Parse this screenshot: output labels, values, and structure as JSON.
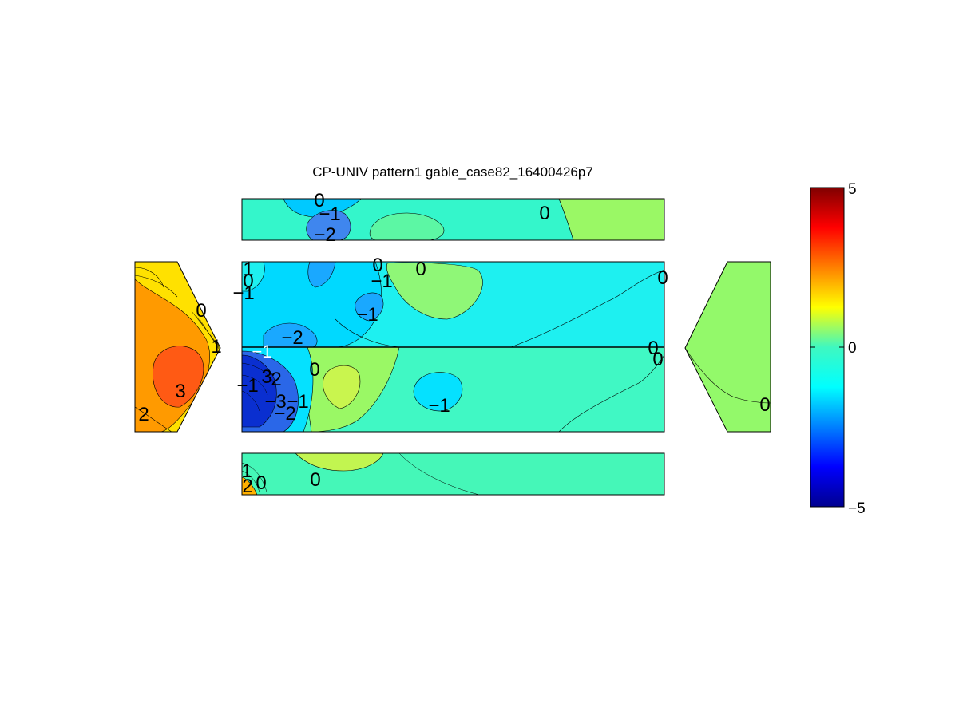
{
  "chart_data": {
    "type": "heatmap",
    "subtype": "filled contour (pressure coefficient on unfolded gable building surfaces)",
    "title": "CP-UNIV pattern1 gable_case82_16400426p7",
    "colormap": "jet",
    "clim": [
      -5,
      5
    ],
    "colorbar": {
      "position": "right",
      "ticks": [
        "5",
        "0",
        "−5"
      ]
    },
    "panels": [
      {
        "name": "top wall strip",
        "regions": [
          {
            "value": -0.5,
            "color": "#34f6cb"
          },
          {
            "value": -1.5,
            "color": "#00c9ff"
          },
          {
            "value": -2.5,
            "color": "#3f86ee"
          },
          {
            "value": 0.5,
            "color": "#9af865"
          },
          {
            "value": 0.0,
            "color": "#5cf7a4"
          }
        ],
        "contour_labels": [
          "0",
          "−1",
          "−2",
          "0"
        ]
      },
      {
        "name": "left gable end",
        "regions": [
          {
            "value": 1.5,
            "color": "#ffe100"
          },
          {
            "value": 2.5,
            "color": "#ff9a00"
          },
          {
            "value": 3.2,
            "color": "#ff5a14"
          }
        ],
        "contour_labels": [
          "0",
          "1",
          "3",
          "2"
        ]
      },
      {
        "name": "roof upper half",
        "regions": [
          {
            "value": -0.7,
            "color": "#1ef0f0"
          },
          {
            "value": -1.3,
            "color": "#00d9ff"
          },
          {
            "value": -2.0,
            "color": "#1aa8ff"
          },
          {
            "value": 0.3,
            "color": "#8ff777"
          }
        ],
        "contour_labels": [
          "1",
          "0",
          "−1",
          "0",
          "0",
          "−1",
          "−1",
          "−2",
          "0"
        ]
      },
      {
        "name": "roof lower half",
        "regions": [
          {
            "value": -0.5,
            "color": "#40f8c4"
          },
          {
            "value": -1.3,
            "color": "#05e1ff"
          },
          {
            "value": -3.5,
            "color": "#2a67e8"
          },
          {
            "value": -4.5,
            "color": "#0a2fd0"
          },
          {
            "value": 0.6,
            "color": "#c9f54e"
          }
        ],
        "contour_labels": [
          "0",
          "−1",
          "2",
          "3",
          "−3",
          "−1",
          "−2",
          "−1",
          "0"
        ]
      },
      {
        "name": "right gable end",
        "regions": [
          {
            "value": 0.3,
            "color": "#93f96a"
          }
        ],
        "contour_labels": [
          "0"
        ]
      },
      {
        "name": "bottom wall strip",
        "regions": [
          {
            "value": 0.0,
            "color": "#45f7b8"
          },
          {
            "value": 0.6,
            "color": "#c2f550"
          },
          {
            "value": 2.0,
            "color": "#ffb000"
          }
        ],
        "contour_labels": [
          "1",
          "2",
          "0",
          "0"
        ]
      }
    ]
  }
}
